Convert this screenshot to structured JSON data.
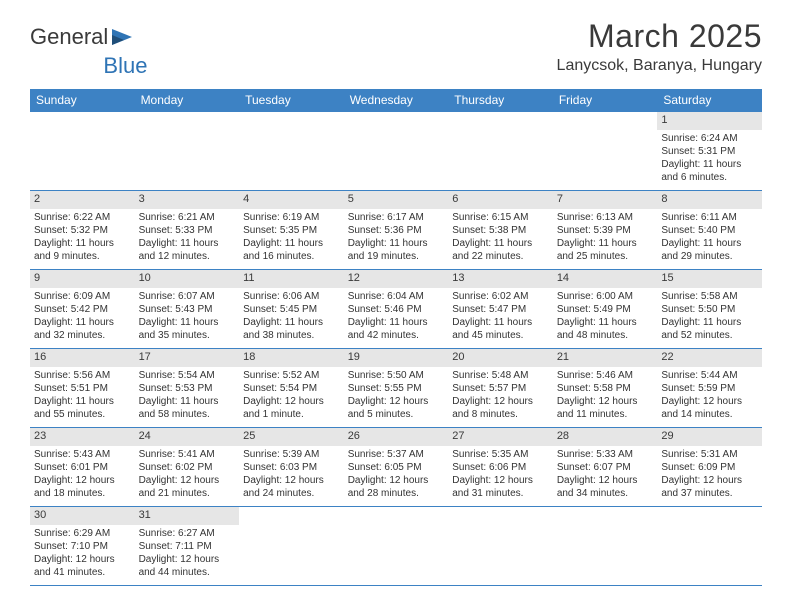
{
  "brand": {
    "word1": "General",
    "word2": "Blue"
  },
  "title": "March 2025",
  "location": "Lanycsok, Baranya, Hungary",
  "colors": {
    "header_bg": "#3d82c4",
    "header_text": "#ffffff",
    "daynum_bg": "#e6e6e6",
    "rule": "#3d82c4",
    "text": "#333333",
    "page_bg": "#ffffff"
  },
  "day_names": [
    "Sunday",
    "Monday",
    "Tuesday",
    "Wednesday",
    "Thursday",
    "Friday",
    "Saturday"
  ],
  "weeks": [
    [
      {
        "n": "",
        "sr": "",
        "ss": "",
        "dl": ""
      },
      {
        "n": "",
        "sr": "",
        "ss": "",
        "dl": ""
      },
      {
        "n": "",
        "sr": "",
        "ss": "",
        "dl": ""
      },
      {
        "n": "",
        "sr": "",
        "ss": "",
        "dl": ""
      },
      {
        "n": "",
        "sr": "",
        "ss": "",
        "dl": ""
      },
      {
        "n": "",
        "sr": "",
        "ss": "",
        "dl": ""
      },
      {
        "n": "1",
        "sr": "Sunrise: 6:24 AM",
        "ss": "Sunset: 5:31 PM",
        "dl": "Daylight: 11 hours and 6 minutes."
      }
    ],
    [
      {
        "n": "2",
        "sr": "Sunrise: 6:22 AM",
        "ss": "Sunset: 5:32 PM",
        "dl": "Daylight: 11 hours and 9 minutes."
      },
      {
        "n": "3",
        "sr": "Sunrise: 6:21 AM",
        "ss": "Sunset: 5:33 PM",
        "dl": "Daylight: 11 hours and 12 minutes."
      },
      {
        "n": "4",
        "sr": "Sunrise: 6:19 AM",
        "ss": "Sunset: 5:35 PM",
        "dl": "Daylight: 11 hours and 16 minutes."
      },
      {
        "n": "5",
        "sr": "Sunrise: 6:17 AM",
        "ss": "Sunset: 5:36 PM",
        "dl": "Daylight: 11 hours and 19 minutes."
      },
      {
        "n": "6",
        "sr": "Sunrise: 6:15 AM",
        "ss": "Sunset: 5:38 PM",
        "dl": "Daylight: 11 hours and 22 minutes."
      },
      {
        "n": "7",
        "sr": "Sunrise: 6:13 AM",
        "ss": "Sunset: 5:39 PM",
        "dl": "Daylight: 11 hours and 25 minutes."
      },
      {
        "n": "8",
        "sr": "Sunrise: 6:11 AM",
        "ss": "Sunset: 5:40 PM",
        "dl": "Daylight: 11 hours and 29 minutes."
      }
    ],
    [
      {
        "n": "9",
        "sr": "Sunrise: 6:09 AM",
        "ss": "Sunset: 5:42 PM",
        "dl": "Daylight: 11 hours and 32 minutes."
      },
      {
        "n": "10",
        "sr": "Sunrise: 6:07 AM",
        "ss": "Sunset: 5:43 PM",
        "dl": "Daylight: 11 hours and 35 minutes."
      },
      {
        "n": "11",
        "sr": "Sunrise: 6:06 AM",
        "ss": "Sunset: 5:45 PM",
        "dl": "Daylight: 11 hours and 38 minutes."
      },
      {
        "n": "12",
        "sr": "Sunrise: 6:04 AM",
        "ss": "Sunset: 5:46 PM",
        "dl": "Daylight: 11 hours and 42 minutes."
      },
      {
        "n": "13",
        "sr": "Sunrise: 6:02 AM",
        "ss": "Sunset: 5:47 PM",
        "dl": "Daylight: 11 hours and 45 minutes."
      },
      {
        "n": "14",
        "sr": "Sunrise: 6:00 AM",
        "ss": "Sunset: 5:49 PM",
        "dl": "Daylight: 11 hours and 48 minutes."
      },
      {
        "n": "15",
        "sr": "Sunrise: 5:58 AM",
        "ss": "Sunset: 5:50 PM",
        "dl": "Daylight: 11 hours and 52 minutes."
      }
    ],
    [
      {
        "n": "16",
        "sr": "Sunrise: 5:56 AM",
        "ss": "Sunset: 5:51 PM",
        "dl": "Daylight: 11 hours and 55 minutes."
      },
      {
        "n": "17",
        "sr": "Sunrise: 5:54 AM",
        "ss": "Sunset: 5:53 PM",
        "dl": "Daylight: 11 hours and 58 minutes."
      },
      {
        "n": "18",
        "sr": "Sunrise: 5:52 AM",
        "ss": "Sunset: 5:54 PM",
        "dl": "Daylight: 12 hours and 1 minute."
      },
      {
        "n": "19",
        "sr": "Sunrise: 5:50 AM",
        "ss": "Sunset: 5:55 PM",
        "dl": "Daylight: 12 hours and 5 minutes."
      },
      {
        "n": "20",
        "sr": "Sunrise: 5:48 AM",
        "ss": "Sunset: 5:57 PM",
        "dl": "Daylight: 12 hours and 8 minutes."
      },
      {
        "n": "21",
        "sr": "Sunrise: 5:46 AM",
        "ss": "Sunset: 5:58 PM",
        "dl": "Daylight: 12 hours and 11 minutes."
      },
      {
        "n": "22",
        "sr": "Sunrise: 5:44 AM",
        "ss": "Sunset: 5:59 PM",
        "dl": "Daylight: 12 hours and 14 minutes."
      }
    ],
    [
      {
        "n": "23",
        "sr": "Sunrise: 5:43 AM",
        "ss": "Sunset: 6:01 PM",
        "dl": "Daylight: 12 hours and 18 minutes."
      },
      {
        "n": "24",
        "sr": "Sunrise: 5:41 AM",
        "ss": "Sunset: 6:02 PM",
        "dl": "Daylight: 12 hours and 21 minutes."
      },
      {
        "n": "25",
        "sr": "Sunrise: 5:39 AM",
        "ss": "Sunset: 6:03 PM",
        "dl": "Daylight: 12 hours and 24 minutes."
      },
      {
        "n": "26",
        "sr": "Sunrise: 5:37 AM",
        "ss": "Sunset: 6:05 PM",
        "dl": "Daylight: 12 hours and 28 minutes."
      },
      {
        "n": "27",
        "sr": "Sunrise: 5:35 AM",
        "ss": "Sunset: 6:06 PM",
        "dl": "Daylight: 12 hours and 31 minutes."
      },
      {
        "n": "28",
        "sr": "Sunrise: 5:33 AM",
        "ss": "Sunset: 6:07 PM",
        "dl": "Daylight: 12 hours and 34 minutes."
      },
      {
        "n": "29",
        "sr": "Sunrise: 5:31 AM",
        "ss": "Sunset: 6:09 PM",
        "dl": "Daylight: 12 hours and 37 minutes."
      }
    ],
    [
      {
        "n": "30",
        "sr": "Sunrise: 6:29 AM",
        "ss": "Sunset: 7:10 PM",
        "dl": "Daylight: 12 hours and 41 minutes."
      },
      {
        "n": "31",
        "sr": "Sunrise: 6:27 AM",
        "ss": "Sunset: 7:11 PM",
        "dl": "Daylight: 12 hours and 44 minutes."
      },
      {
        "n": "",
        "sr": "",
        "ss": "",
        "dl": ""
      },
      {
        "n": "",
        "sr": "",
        "ss": "",
        "dl": ""
      },
      {
        "n": "",
        "sr": "",
        "ss": "",
        "dl": ""
      },
      {
        "n": "",
        "sr": "",
        "ss": "",
        "dl": ""
      },
      {
        "n": "",
        "sr": "",
        "ss": "",
        "dl": ""
      }
    ]
  ]
}
